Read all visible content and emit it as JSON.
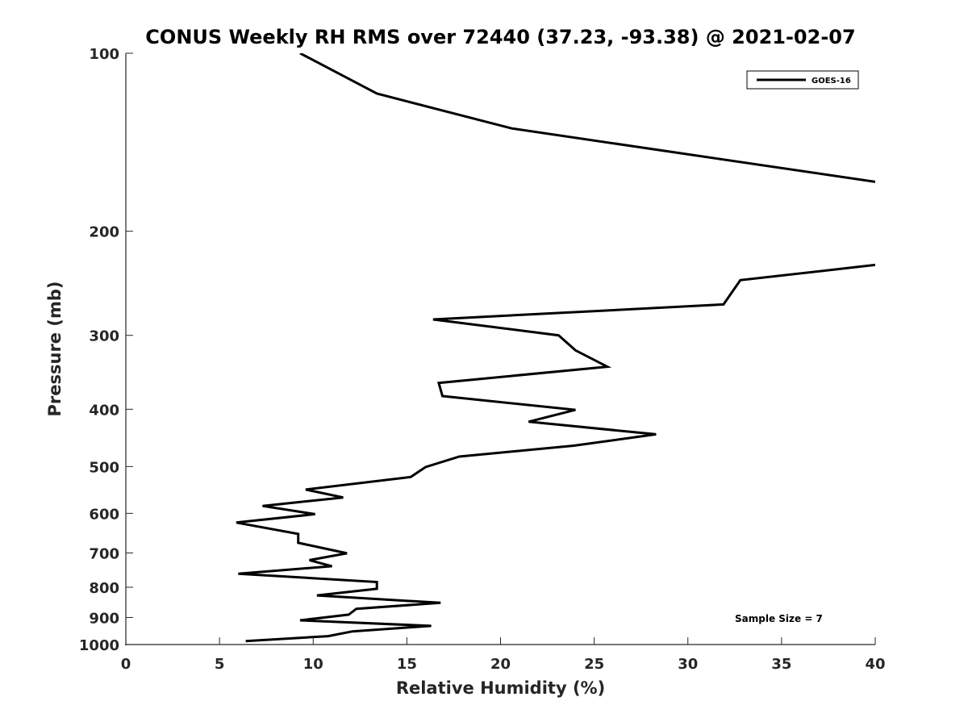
{
  "chart_data": {
    "type": "line",
    "title": "CONUS Weekly RH RMS over 72440 (37.23, -93.38) @ 2021-02-07",
    "xlabel": "Relative Humidity (%)",
    "ylabel": "Pressure (mb)",
    "xlim": [
      0,
      40
    ],
    "ylim": [
      100,
      1000
    ],
    "yscale": "log",
    "yreversed": true,
    "x_ticks": [
      0,
      5,
      10,
      15,
      20,
      25,
      30,
      35,
      40
    ],
    "y_ticks": [
      100,
      200,
      300,
      400,
      500,
      600,
      700,
      800,
      900,
      1000
    ],
    "grid": false,
    "legend_position": "top-right",
    "annotation": "Sample Size = 7",
    "series": [
      {
        "name": "GOES-16",
        "color": "#000000",
        "segments": [
          [
            [
              9.3,
              100
            ],
            [
              13.4,
              117
            ],
            [
              20.6,
              134
            ],
            [
              40.0,
              165
            ]
          ],
          [
            [
              40.0,
              228
            ],
            [
              32.8,
              242
            ],
            [
              31.9,
              266
            ],
            [
              16.4,
              282
            ],
            [
              23.1,
              300
            ],
            [
              24.0,
              318
            ],
            [
              25.7,
              339
            ],
            [
              16.7,
              361
            ],
            [
              16.9,
              380
            ],
            [
              24.0,
              401
            ],
            [
              21.5,
              420
            ],
            [
              28.3,
              441
            ],
            [
              23.9,
              461
            ],
            [
              17.8,
              481
            ],
            [
              16.0,
              501
            ],
            [
              15.2,
              521
            ],
            [
              9.6,
              547
            ],
            [
              11.6,
              564
            ],
            [
              7.3,
              583
            ],
            [
              10.1,
              602
            ],
            [
              5.9,
              622
            ],
            [
              9.2,
              650
            ],
            [
              9.2,
              673
            ],
            [
              11.8,
              701
            ],
            [
              9.8,
              720
            ],
            [
              11.0,
              737
            ],
            [
              6.0,
              759
            ],
            [
              13.4,
              784
            ],
            [
              13.4,
              805
            ],
            [
              10.2,
              826
            ],
            [
              16.8,
              850
            ],
            [
              12.3,
              870
            ],
            [
              11.9,
              890
            ],
            [
              9.3,
              910
            ],
            [
              16.3,
              930
            ],
            [
              12.1,
              950
            ],
            [
              10.8,
              968
            ],
            [
              6.4,
              987
            ]
          ]
        ]
      }
    ]
  }
}
